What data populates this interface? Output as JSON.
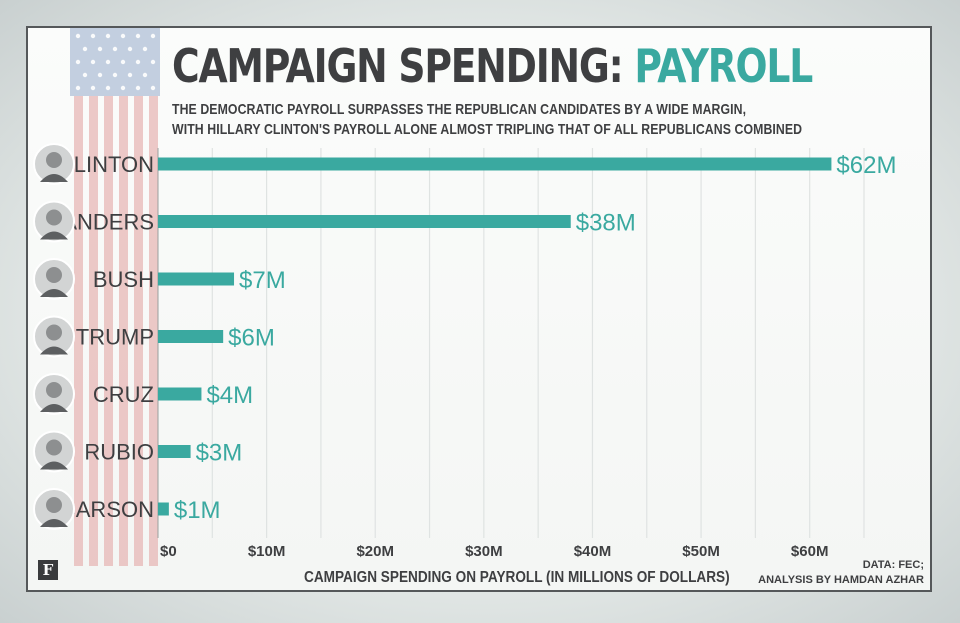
{
  "title_part1": "CAMPAIGN SPENDING: ",
  "title_part2": "PAYROLL",
  "subtitle_line1": "THE DEMOCRATIC PAYROLL SURPASSES THE REPUBLICAN CANDIDATES BY A WIDE MARGIN,",
  "subtitle_line2": "WITH HILLARY CLINTON'S PAYROLL ALONE ALMOST TRIPLING THAT OF ALL REPUBLICANS COMBINED",
  "xlabel": "CAMPAIGN SPENDING ON PAYROLL (IN MILLIONS OF DOLLARS)",
  "source_line1": "DATA: FEC;",
  "source_line2": "ANALYSIS BY HAMDAN AZHAR",
  "logo": "F",
  "colors": {
    "bar": "#3aa9a0",
    "text": "#3e3f41",
    "grid": "#dfe3e2"
  },
  "chart_data": {
    "type": "bar",
    "orientation": "horizontal",
    "categories": [
      "CLINTON",
      "SANDERS",
      "BUSH",
      "TRUMP",
      "CRUZ",
      "RUBIO",
      "CARSON"
    ],
    "values": [
      62,
      38,
      7,
      6,
      4,
      3,
      1
    ],
    "value_labels": [
      "$62M",
      "$38M",
      "$7M",
      "$6M",
      "$4M",
      "$3M",
      "$1M"
    ],
    "xticks": [
      0,
      10,
      20,
      30,
      40,
      50,
      60
    ],
    "xtick_labels": [
      "$0",
      "$10M",
      "$20M",
      "$30M",
      "$40M",
      "$50M",
      "$60M"
    ],
    "xlim": [
      0,
      65
    ],
    "grid": true
  }
}
